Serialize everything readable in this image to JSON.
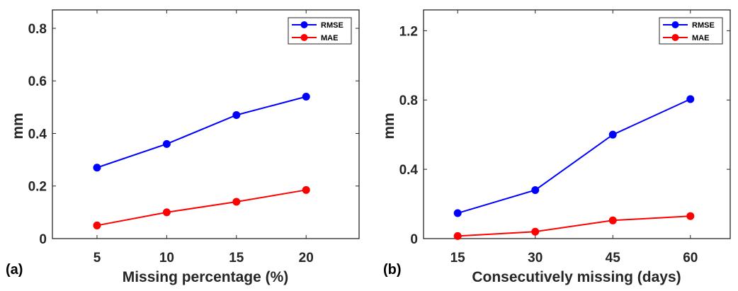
{
  "chart_data": [
    {
      "type": "line",
      "panel_label": "(a)",
      "xlabel": "Missing percentage (%)",
      "ylabel": "mm",
      "x": [
        5,
        10,
        15,
        20
      ],
      "xticks": [
        "5",
        "10",
        "15",
        "20"
      ],
      "xlim": [
        1.8,
        23.8
      ],
      "yticks": [
        "0",
        "0.2",
        "0.4",
        "0.6",
        "0.8"
      ],
      "ytick_values": [
        0,
        0.2,
        0.4,
        0.6,
        0.8
      ],
      "ylim": [
        0,
        0.87
      ],
      "grid": false,
      "legend_position": "top-right",
      "series": [
        {
          "name": "RMSE",
          "color": "#0000ff",
          "values": [
            0.27,
            0.36,
            0.47,
            0.54
          ]
        },
        {
          "name": "MAE",
          "color": "#ff0000",
          "values": [
            0.05,
            0.1,
            0.14,
            0.185
          ]
        }
      ]
    },
    {
      "type": "line",
      "panel_label": "(b)",
      "xlabel": "Consecutively missing (days)",
      "ylabel": "mm",
      "x": [
        15,
        30,
        45,
        60
      ],
      "xticks": [
        "15",
        "30",
        "45",
        "60"
      ],
      "xlim": [
        8.4,
        67.7
      ],
      "yticks": [
        "0",
        "0.4",
        "0.8",
        "1.2"
      ],
      "ytick_values": [
        0,
        0.4,
        0.8,
        1.2
      ],
      "ylim": [
        0,
        1.32
      ],
      "grid": false,
      "legend_position": "top-right",
      "series": [
        {
          "name": "RMSE",
          "color": "#0000ff",
          "values": [
            0.147,
            0.28,
            0.6,
            0.805
          ]
        },
        {
          "name": "MAE",
          "color": "#ff0000",
          "values": [
            0.015,
            0.04,
            0.105,
            0.13
          ]
        }
      ]
    }
  ]
}
